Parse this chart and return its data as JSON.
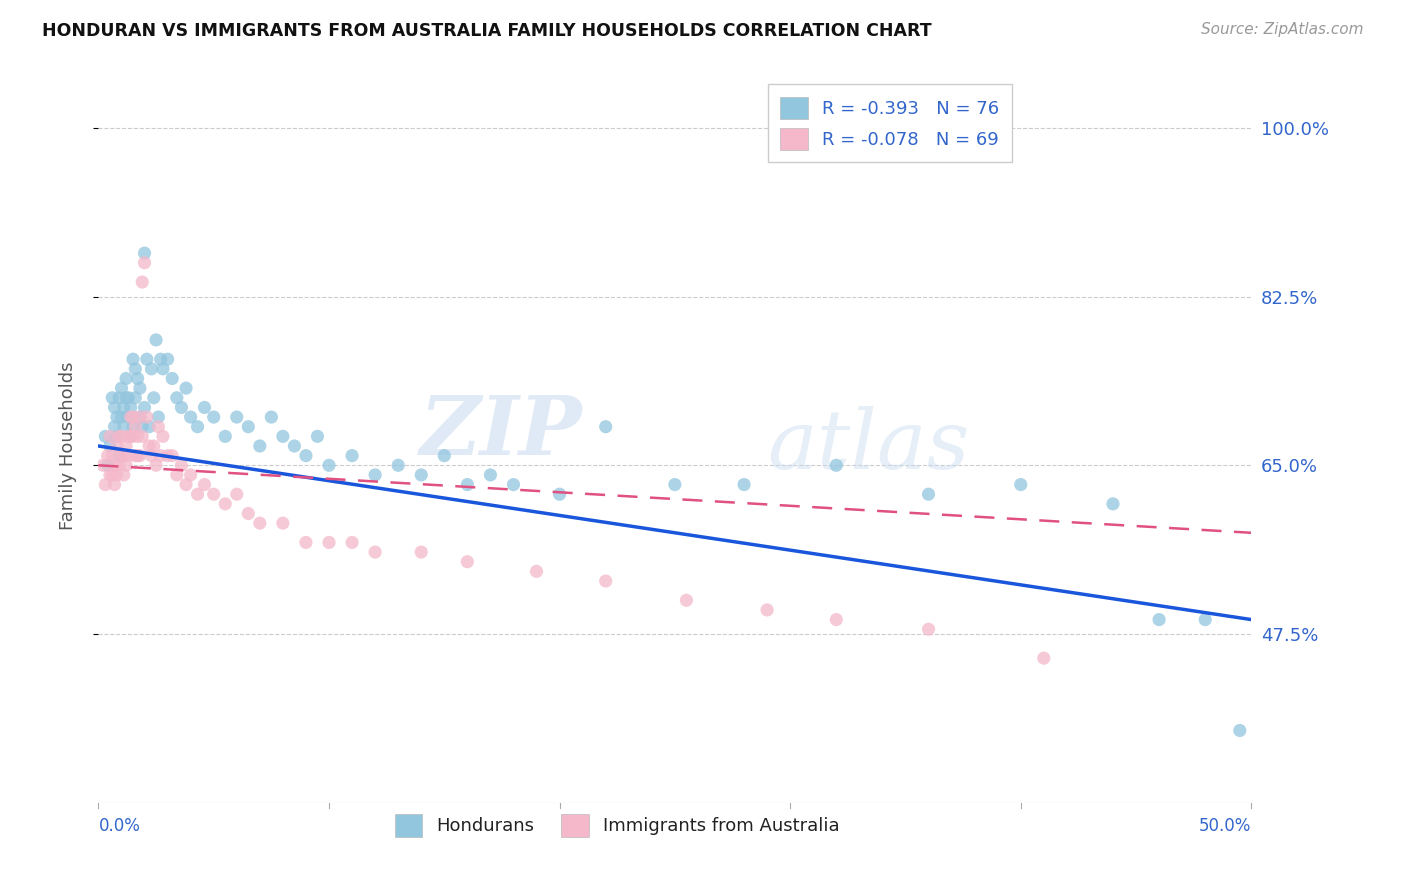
{
  "title": "HONDURAN VS IMMIGRANTS FROM AUSTRALIA FAMILY HOUSEHOLDS CORRELATION CHART",
  "source": "Source: ZipAtlas.com",
  "ylabel": "Family Households",
  "y_ticks": [
    0.475,
    0.65,
    0.825,
    1.0
  ],
  "y_tick_labels": [
    "47.5%",
    "65.0%",
    "82.5%",
    "100.0%"
  ],
  "x_range": [
    0.0,
    0.5
  ],
  "y_range": [
    0.3,
    1.04
  ],
  "color_blue": "#92c5de",
  "color_pink": "#f4b8ca",
  "color_blue_line": "#1a56db",
  "color_pink_line": "#e05080",
  "color_text_blue": "#3366cc",
  "watermark_zip": "ZIP",
  "watermark_atlas": "atlas",
  "hondurans_x": [
    0.003,
    0.004,
    0.005,
    0.006,
    0.007,
    0.007,
    0.008,
    0.008,
    0.009,
    0.009,
    0.01,
    0.01,
    0.011,
    0.011,
    0.012,
    0.012,
    0.013,
    0.013,
    0.014,
    0.014,
    0.015,
    0.015,
    0.016,
    0.016,
    0.017,
    0.018,
    0.018,
    0.019,
    0.02,
    0.02,
    0.021,
    0.022,
    0.023,
    0.024,
    0.025,
    0.026,
    0.027,
    0.028,
    0.03,
    0.032,
    0.034,
    0.036,
    0.038,
    0.04,
    0.043,
    0.046,
    0.05,
    0.055,
    0.06,
    0.065,
    0.07,
    0.075,
    0.08,
    0.085,
    0.09,
    0.095,
    0.1,
    0.11,
    0.12,
    0.13,
    0.14,
    0.15,
    0.16,
    0.17,
    0.18,
    0.2,
    0.22,
    0.25,
    0.28,
    0.32,
    0.36,
    0.4,
    0.44,
    0.46,
    0.48,
    0.495
  ],
  "hondurans_y": [
    0.68,
    0.65,
    0.67,
    0.72,
    0.69,
    0.71,
    0.68,
    0.7,
    0.66,
    0.72,
    0.7,
    0.73,
    0.71,
    0.69,
    0.72,
    0.74,
    0.7,
    0.72,
    0.68,
    0.71,
    0.76,
    0.69,
    0.75,
    0.72,
    0.74,
    0.7,
    0.73,
    0.69,
    0.87,
    0.71,
    0.76,
    0.69,
    0.75,
    0.72,
    0.78,
    0.7,
    0.76,
    0.75,
    0.76,
    0.74,
    0.72,
    0.71,
    0.73,
    0.7,
    0.69,
    0.71,
    0.7,
    0.68,
    0.7,
    0.69,
    0.67,
    0.7,
    0.68,
    0.67,
    0.66,
    0.68,
    0.65,
    0.66,
    0.64,
    0.65,
    0.64,
    0.66,
    0.63,
    0.64,
    0.63,
    0.62,
    0.69,
    0.63,
    0.63,
    0.65,
    0.62,
    0.63,
    0.61,
    0.49,
    0.49,
    0.375
  ],
  "australia_x": [
    0.002,
    0.003,
    0.004,
    0.005,
    0.005,
    0.006,
    0.006,
    0.007,
    0.007,
    0.008,
    0.008,
    0.009,
    0.009,
    0.01,
    0.01,
    0.011,
    0.011,
    0.012,
    0.012,
    0.013,
    0.013,
    0.014,
    0.014,
    0.015,
    0.015,
    0.016,
    0.016,
    0.017,
    0.017,
    0.018,
    0.018,
    0.019,
    0.019,
    0.02,
    0.021,
    0.022,
    0.023,
    0.024,
    0.025,
    0.026,
    0.027,
    0.028,
    0.03,
    0.032,
    0.034,
    0.036,
    0.038,
    0.04,
    0.043,
    0.046,
    0.05,
    0.055,
    0.06,
    0.065,
    0.07,
    0.08,
    0.09,
    0.1,
    0.11,
    0.12,
    0.14,
    0.16,
    0.19,
    0.22,
    0.255,
    0.29,
    0.32,
    0.36,
    0.41
  ],
  "australia_y": [
    0.65,
    0.63,
    0.66,
    0.64,
    0.68,
    0.66,
    0.64,
    0.65,
    0.63,
    0.67,
    0.64,
    0.68,
    0.65,
    0.68,
    0.66,
    0.66,
    0.64,
    0.67,
    0.65,
    0.68,
    0.66,
    0.68,
    0.7,
    0.68,
    0.7,
    0.66,
    0.69,
    0.66,
    0.68,
    0.7,
    0.66,
    0.84,
    0.68,
    0.86,
    0.7,
    0.67,
    0.66,
    0.67,
    0.65,
    0.69,
    0.66,
    0.68,
    0.66,
    0.66,
    0.64,
    0.65,
    0.63,
    0.64,
    0.62,
    0.63,
    0.62,
    0.61,
    0.62,
    0.6,
    0.59,
    0.59,
    0.57,
    0.57,
    0.57,
    0.56,
    0.56,
    0.55,
    0.54,
    0.53,
    0.51,
    0.5,
    0.49,
    0.48,
    0.45
  ]
}
